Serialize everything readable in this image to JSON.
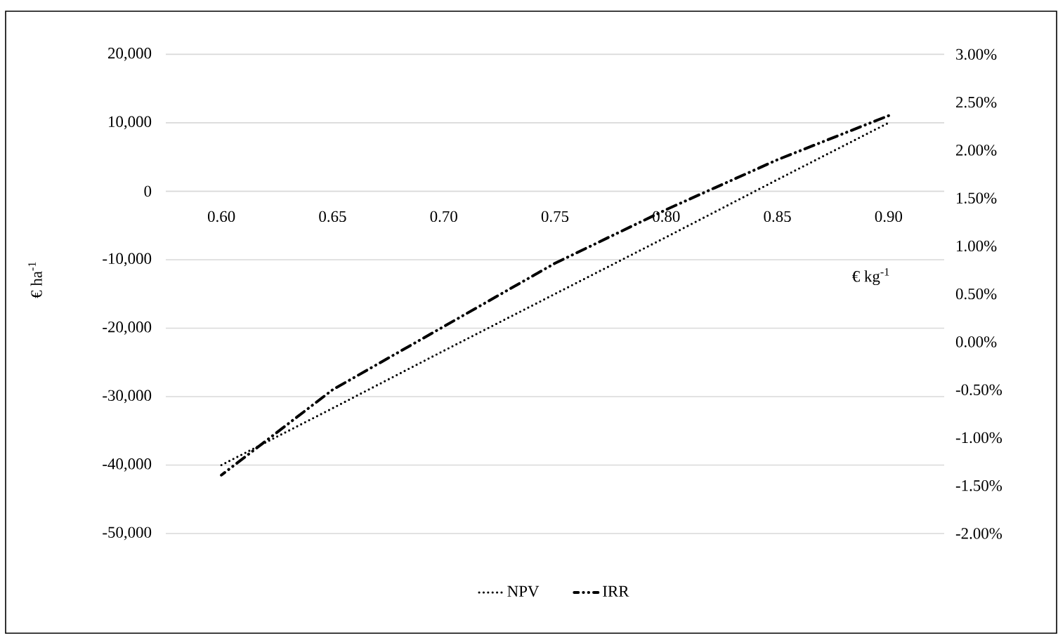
{
  "chart_data": {
    "type": "line",
    "categories": [
      "0.60",
      "0.65",
      "0.70",
      "0.75",
      "0.80",
      "0.85",
      "0.90"
    ],
    "xlabel": "€ kg$^{-1}$",
    "ylabel": "€ ha$^{-1}$",
    "ylim": [
      -50000,
      20000
    ],
    "yticks": [
      {
        "value": -50000,
        "label": "-50,000"
      },
      {
        "value": -40000,
        "label": "-40,000"
      },
      {
        "value": -30000,
        "label": "-30,000"
      },
      {
        "value": -20000,
        "label": "-20,000"
      },
      {
        "value": -10000,
        "label": "-10,000"
      },
      0,
      {
        "value": 10000,
        "label": "10,000"
      },
      {
        "value": 20000,
        "label": "20,000"
      }
    ],
    "y2lim": [
      -2,
      3
    ],
    "y2ticks": [
      {
        "value": -2,
        "label": "-2.00%"
      },
      {
        "value": -1.5,
        "label": "-1.50%"
      },
      {
        "value": -1,
        "label": "-1.00%"
      },
      {
        "value": -0.5,
        "label": "-0.50%"
      },
      {
        "value": 0,
        "label": "0.00%"
      },
      {
        "value": 0.5,
        "label": "0.50%"
      },
      {
        "value": 1,
        "label": "1.00%"
      },
      {
        "value": 1.5,
        "label": "1.50%"
      },
      {
        "value": 2,
        "label": "2.00%"
      },
      {
        "value": 2.5,
        "label": "2.50%"
      },
      {
        "value": 3,
        "label": "3.00%"
      }
    ],
    "grid": "y",
    "legend": "bottom",
    "marker": "none",
    "series": [
      {
        "name": "NPV",
        "color": "#000000",
        "line_style": "dotted",
        "values": [
          -40000,
          -31700,
          -23300,
          -15000,
          -6700,
          1700,
          10000
        ]
      },
      {
        "name": "IRR",
        "color": "#000000",
        "line_style": "dashdot",
        "axis": "y2",
        "values": [
          -1.39,
          -0.5,
          0.16,
          0.82,
          1.38,
          1.9,
          2.36
        ]
      }
    ]
  }
}
